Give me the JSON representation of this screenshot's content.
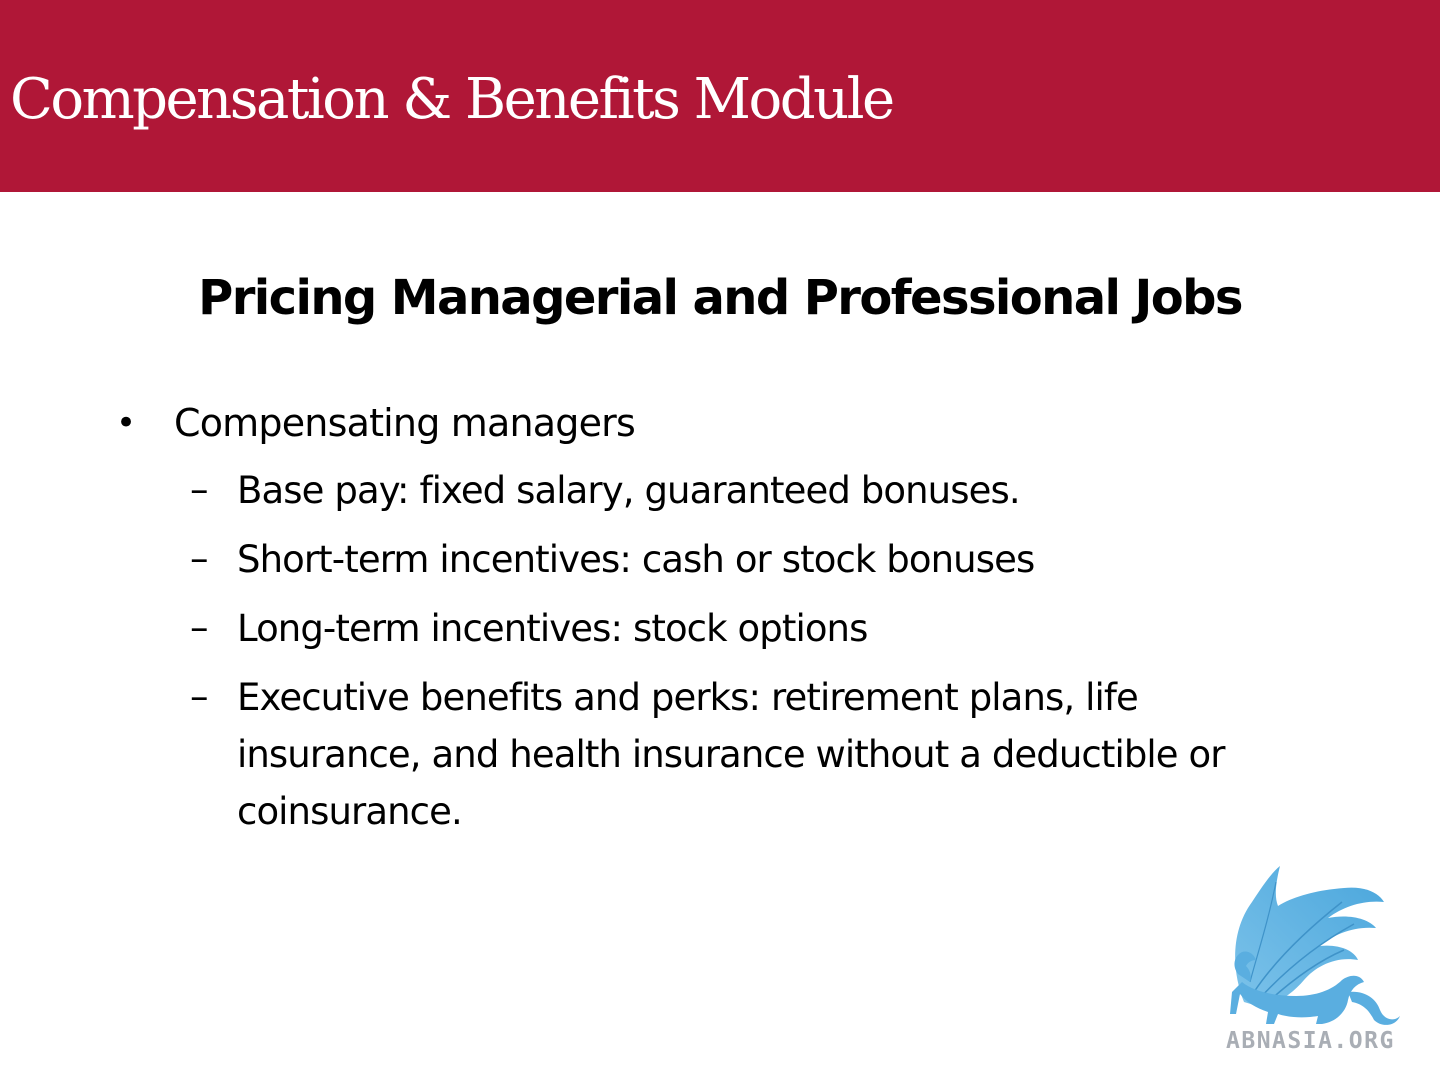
{
  "header": {
    "module_title": "Compensation & Benefits Module",
    "band_color": "#b01737"
  },
  "slide": {
    "title": "Pricing Managerial and Professional Jobs",
    "bullets": [
      {
        "text": "Compensating managers",
        "subitems": [
          "Base pay: fixed salary, guaranteed bonuses.",
          "Short-term incentives: cash or stock bonuses",
          "Long-term incentives: stock options",
          "Executive benefits and perks: retirement plans, life insurance, and health insurance without a deductible or coinsurance."
        ]
      }
    ]
  },
  "logo": {
    "icon": "griffin-icon",
    "text": "ABNASIA.ORG",
    "color": "#5aaee0"
  }
}
